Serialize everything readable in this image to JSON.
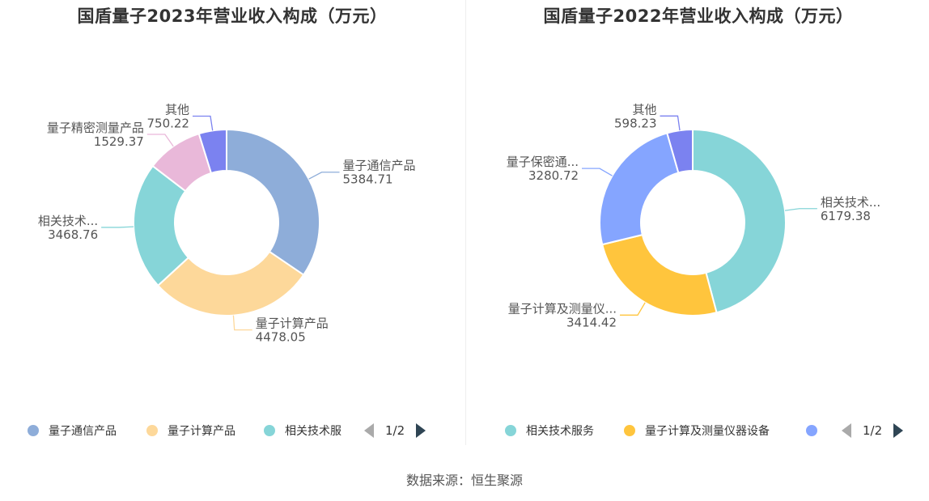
{
  "source": "数据来源：恒生聚源",
  "chart_data": [
    {
      "type": "pie",
      "title": "国盾量子2023年营业收入构成（万元）",
      "slices": [
        {
          "name": "量子通信产品",
          "label": "量子通信产品",
          "value": 5384.71,
          "color": "#8eadd9"
        },
        {
          "name": "量子计算产品",
          "label": "量子计算产品",
          "value": 4478.05,
          "color": "#fdd89a"
        },
        {
          "name": "相关技术服务",
          "label": "相关技术...",
          "value": 3468.76,
          "color": "#86d5d8"
        },
        {
          "name": "量子精密测量产品",
          "label": "量子精密测量产品",
          "value": 1529.37,
          "color": "#e9b8d9"
        },
        {
          "name": "其他",
          "label": "其他",
          "value": 750.22,
          "color": "#7b82f0"
        }
      ],
      "legend": {
        "items": [
          "量子通信产品",
          "量子计算产品",
          "相关技术服"
        ],
        "page": "1/2"
      }
    },
    {
      "type": "pie",
      "title": "国盾量子2022年营业收入构成（万元）",
      "slices": [
        {
          "name": "相关技术服务",
          "label": "相关技术...",
          "value": 6179.38,
          "color": "#86d5d8"
        },
        {
          "name": "量子计算及测量仪器设备",
          "label": "量子计算及测量仪...",
          "value": 3414.42,
          "color": "#ffc53d"
        },
        {
          "name": "量子保密通信产品",
          "label": "量子保密通...",
          "value": 3280.72,
          "color": "#85a5ff"
        },
        {
          "name": "其他",
          "label": "其他",
          "value": 598.23,
          "color": "#7b82f0"
        }
      ],
      "legend": {
        "items": [
          "相关技术服务",
          "量子计算及测量仪器设备",
          ""
        ],
        "page": "1/2"
      }
    }
  ]
}
